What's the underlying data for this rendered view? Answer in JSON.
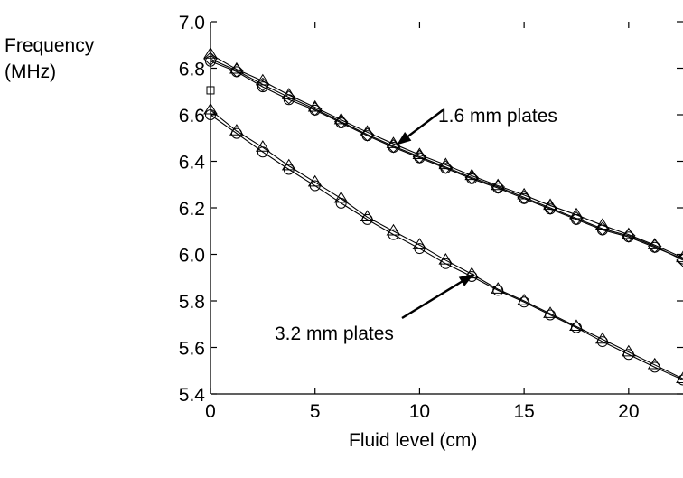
{
  "chart_data": {
    "type": "line",
    "title": "",
    "ylabel_lines": [
      "Frequency",
      "(MHz)"
    ],
    "xlabel": "Fluid level (cm)",
    "xlim": [
      0,
      22.6
    ],
    "ylim": [
      5.4,
      7.0
    ],
    "xticks": [
      0,
      5,
      10,
      15,
      20
    ],
    "xtick_labels": [
      "0",
      "5",
      "10",
      "15",
      "20"
    ],
    "yticks": [
      5.4,
      5.6,
      5.8,
      6.0,
      6.2,
      6.4,
      6.6,
      6.8,
      7.0
    ],
    "ytick_labels": [
      "5.4",
      "5.6",
      "5.8",
      "6.0",
      "6.2",
      "6.4",
      "6.6",
      "6.8",
      "7.0"
    ],
    "grid": false,
    "x": [
      0,
      1.25,
      2.5,
      3.75,
      5,
      6.25,
      7.5,
      8.75,
      10,
      11.25,
      12.5,
      13.75,
      15,
      16.25,
      17.5,
      18.75,
      20,
      21.25,
      22.6
    ],
    "series": [
      {
        "marker": "triangle",
        "values": [
          6.86,
          6.795,
          6.745,
          6.685,
          6.632,
          6.578,
          6.525,
          6.475,
          6.428,
          6.385,
          6.338,
          6.295,
          6.255,
          6.21,
          6.17,
          6.125,
          6.085,
          6.04,
          5.985
        ]
      },
      {
        "marker": "circle",
        "values": [
          6.83,
          6.785,
          6.72,
          6.665,
          6.62,
          6.565,
          6.51,
          6.46,
          6.415,
          6.37,
          6.325,
          6.285,
          6.24,
          6.195,
          6.15,
          6.105,
          6.075,
          6.03,
          5.98
        ]
      },
      {
        "marker": "diamond",
        "values": [
          6.84,
          6.79,
          6.73,
          6.675,
          6.625,
          6.57,
          6.515,
          6.465,
          6.42,
          6.375,
          6.33,
          6.29,
          6.245,
          6.2,
          6.155,
          6.11,
          6.08,
          6.035,
          5.975
        ]
      },
      {
        "marker": "triangle",
        "values": [
          6.62,
          6.53,
          6.46,
          6.38,
          6.31,
          6.24,
          6.16,
          6.1,
          6.04,
          5.975,
          5.915,
          5.85,
          5.8,
          5.745,
          5.69,
          5.635,
          5.58,
          5.525,
          5.465
        ]
      },
      {
        "marker": "circle",
        "values": [
          6.6,
          6.52,
          6.44,
          6.365,
          6.295,
          6.22,
          6.15,
          6.085,
          6.025,
          5.96,
          5.905,
          5.845,
          5.795,
          5.74,
          5.685,
          5.625,
          5.57,
          5.515,
          5.46
        ]
      }
    ],
    "stray_marker": {
      "shape": "square",
      "x": 0,
      "y": 6.705
    },
    "annotations": [
      {
        "text": "1.6 mm plates",
        "arrow_to": [
          8.9,
          6.47
        ]
      },
      {
        "text": "3.2 mm plates",
        "arrow_to": [
          12.6,
          5.915
        ]
      }
    ]
  }
}
